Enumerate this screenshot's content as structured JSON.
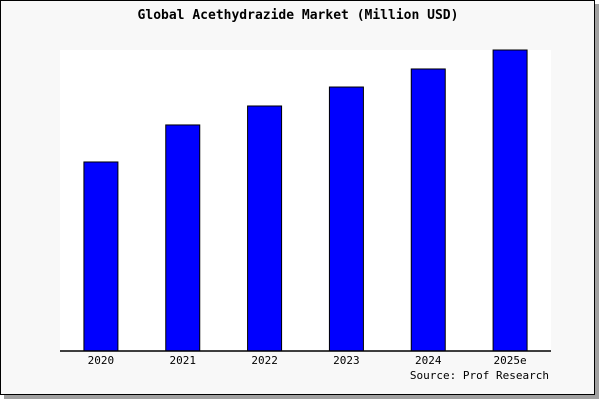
{
  "chart_data": {
    "type": "bar",
    "title": "Global Acethydrazide Market (Million USD)",
    "categories": [
      "2020",
      "2021",
      "2022",
      "2023",
      "2024",
      "2025e"
    ],
    "values": [
      62.8,
      75.1,
      81.4,
      87.7,
      93.7,
      100
    ],
    "ylim": [
      0,
      100
    ],
    "xlabel": "",
    "ylabel": "",
    "grid": false,
    "bar_color": "#0000ff",
    "source": "Source: Prof Research"
  }
}
